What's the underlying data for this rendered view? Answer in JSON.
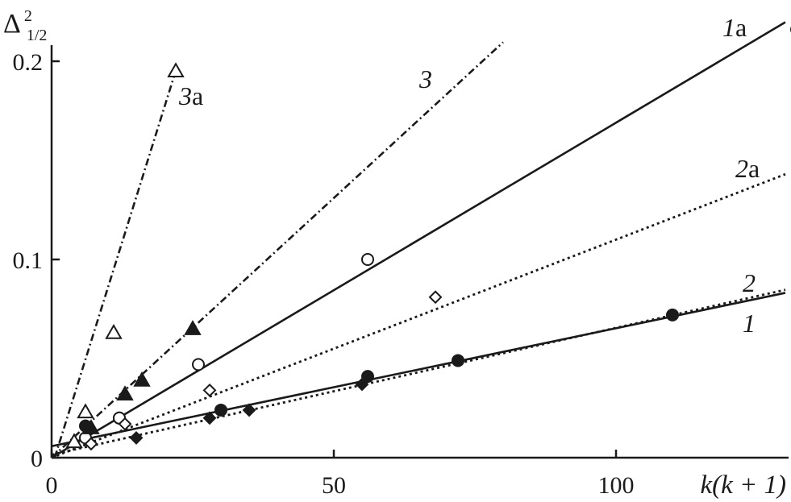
{
  "chart_data": {
    "type": "scatter",
    "xlabel": "k(k + 1)",
    "ylabel_main": "Δ",
    "ylabel_sup": "2",
    "ylabel_sub": "1/2",
    "xlim": [
      0,
      130
    ],
    "ylim": [
      0,
      0.2
    ],
    "x_ticks": [
      {
        "value": 0,
        "label": "0"
      },
      {
        "value": 50,
        "label": "50"
      },
      {
        "value": 100,
        "label": "100"
      }
    ],
    "y_ticks": [
      {
        "value": 0,
        "label": "0"
      },
      {
        "value": 0.1,
        "label": "0.1"
      },
      {
        "value": 0.2,
        "label": "0.2"
      }
    ],
    "grid": false,
    "series": [
      {
        "id": "1",
        "name_num": "1",
        "name_suffix": "",
        "marker": "circle-filled",
        "line": "solid",
        "points": [
          [
            6,
            0.016
          ],
          [
            12,
            0.02
          ],
          [
            30,
            0.024
          ],
          [
            56,
            0.041
          ],
          [
            72,
            0.049
          ],
          [
            110,
            0.072
          ]
        ],
        "fit": {
          "x0": 0,
          "x1": 130,
          "intercept": 0.0058,
          "slope": 0.000595
        }
      },
      {
        "id": "1a",
        "name_num": "1",
        "name_suffix": "a",
        "marker": "circle-open",
        "line": "solid",
        "points": [
          [
            6,
            0.01
          ],
          [
            12,
            0.02
          ],
          [
            26,
            0.047
          ],
          [
            56,
            0.1
          ],
          [
            132,
            0.216
          ]
        ],
        "fit": {
          "x0": 0,
          "x1": 130,
          "intercept": 0.0,
          "slope": 0.00169
        }
      },
      {
        "id": "2",
        "name_num": "2",
        "name_suffix": "",
        "marker": "diamond-filled",
        "line": "dotted",
        "points": [
          [
            15,
            0.01
          ],
          [
            28,
            0.02
          ],
          [
            35,
            0.024
          ],
          [
            55,
            0.037
          ]
        ],
        "fit": {
          "x0": 0,
          "x1": 130,
          "intercept": 0.0015,
          "slope": 0.00064
        }
      },
      {
        "id": "2a",
        "name_num": "2",
        "name_suffix": "a",
        "marker": "diamond-open",
        "line": "dotted",
        "points": [
          [
            7,
            0.007
          ],
          [
            13,
            0.017
          ],
          [
            28,
            0.034
          ],
          [
            68,
            0.081
          ]
        ],
        "fit": {
          "x0": 0,
          "x1": 130,
          "intercept": 0.0,
          "slope": 0.0011
        }
      },
      {
        "id": "3",
        "name_num": "3",
        "name_suffix": "",
        "marker": "triangle-filled",
        "line": "dashdot",
        "points": [
          [
            7,
            0.015
          ],
          [
            13,
            0.032
          ],
          [
            16,
            0.039
          ],
          [
            25,
            0.065
          ]
        ],
        "fit": {
          "x0": 0,
          "x1": 80,
          "intercept": 0.0,
          "slope": 0.00262
        }
      },
      {
        "id": "3a",
        "name_num": "3",
        "name_suffix": "a",
        "marker": "triangle-open",
        "line": "dashdot",
        "points": [
          [
            4,
            0.008
          ],
          [
            6,
            0.023
          ],
          [
            11,
            0.063
          ],
          [
            22,
            0.195
          ]
        ],
        "fit": {
          "x0": 0,
          "x1": 22,
          "intercept": -0.005,
          "slope": 0.0091
        }
      }
    ]
  }
}
